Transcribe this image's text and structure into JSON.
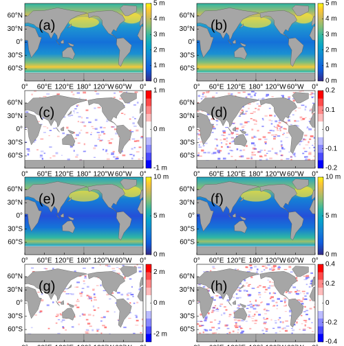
{
  "latlim": [
    -88,
    88
  ],
  "lonlim": [
    0,
    360
  ],
  "lat_ticks": [
    {
      "value": 60,
      "label": "60°N"
    },
    {
      "value": 30,
      "label": "30°N"
    },
    {
      "value": 0,
      "label": "0°"
    },
    {
      "value": -30,
      "label": "30°S"
    },
    {
      "value": -60,
      "label": "60°S"
    }
  ],
  "lon_ticks": [
    {
      "value": 0,
      "label": "0°"
    },
    {
      "value": 60,
      "label": "60°E"
    },
    {
      "value": 120,
      "label": "120°E"
    },
    {
      "value": 180,
      "label": "180°"
    },
    {
      "value": 240,
      "label": "120°W"
    },
    {
      "value": 300,
      "label": "60°W"
    },
    {
      "value": 360,
      "label": "0°"
    }
  ],
  "panels": [
    {
      "label": "(a)",
      "colormap": "sequential",
      "lim": [
        0,
        5
      ],
      "ticks": [
        {
          "value": 5,
          "label": "5 m"
        },
        {
          "value": 4,
          "label": "4 m"
        },
        {
          "value": 3,
          "label": "3 m"
        },
        {
          "value": 2,
          "label": "2 m"
        },
        {
          "value": 1,
          "label": "1 m"
        },
        {
          "value": 0,
          "label": "0 m"
        }
      ]
    },
    {
      "label": "(b)",
      "colormap": "sequential",
      "lim": [
        0,
        5
      ],
      "ticks": [
        {
          "value": 5,
          "label": "5 m"
        },
        {
          "value": 4,
          "label": "4 m"
        },
        {
          "value": 3,
          "label": "3 m"
        },
        {
          "value": 2,
          "label": "2 m"
        },
        {
          "value": 1,
          "label": "1 m"
        },
        {
          "value": 0,
          "label": "0 m"
        }
      ]
    },
    {
      "label": "(c)",
      "colormap": "diverging",
      "lim": [
        -1,
        1
      ],
      "ticks": [
        {
          "value": 1,
          "label": "1 m"
        },
        {
          "value": 0,
          "label": "0 m"
        },
        {
          "value": -1,
          "label": "-1 m"
        }
      ]
    },
    {
      "label": "(d)",
      "colormap": "diverging",
      "lim": [
        -0.2,
        0.2
      ],
      "ticks": [
        0.2,
        0.1,
        0,
        -0.1,
        -0.2
      ]
    },
    {
      "label": "(e)",
      "colormap": "sequential",
      "lim": [
        0,
        10
      ],
      "ticks": [
        {
          "value": 10,
          "label": "10 m"
        },
        {
          "value": 5,
          "label": "5 m"
        },
        {
          "value": 0,
          "label": "0 m"
        }
      ]
    },
    {
      "label": "(f)",
      "colormap": "sequential",
      "lim": [
        0,
        10
      ],
      "ticks": [
        {
          "value": 10,
          "label": "10 m"
        },
        {
          "value": 5,
          "label": "5 m"
        },
        {
          "value": 0,
          "label": "0 m"
        }
      ]
    },
    {
      "label": "(g)",
      "colormap": "diverging",
      "lim": [
        -2.5,
        2.5
      ],
      "ticks": [
        {
          "value": 2,
          "label": "2 m"
        },
        {
          "value": 0,
          "label": "0 m"
        },
        {
          "value": -2,
          "label": "-2 m"
        }
      ]
    },
    {
      "label": "(h)",
      "colormap": "diverging",
      "lim": [
        -0.4,
        0.4
      ],
      "ticks": [
        0.4,
        0.2,
        0,
        -0.2,
        -0.4
      ]
    }
  ]
}
